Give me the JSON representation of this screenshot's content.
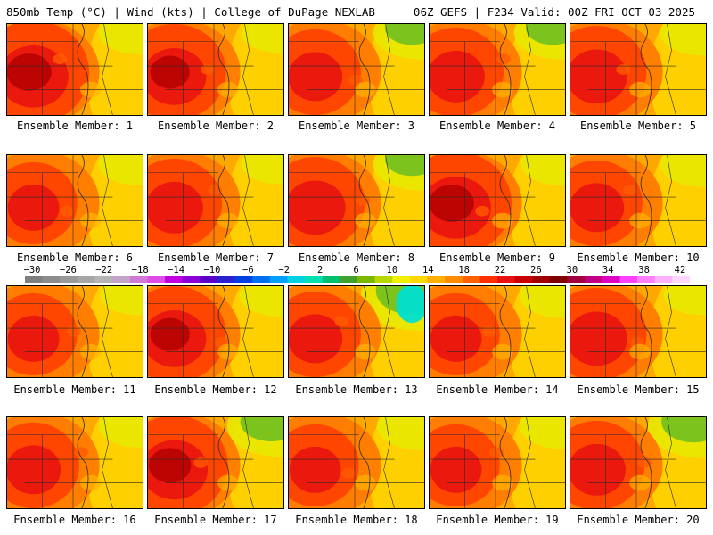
{
  "header": {
    "left": "850mb Temp (°C) | Wind (kts) | College of DuPage NEXLAB",
    "right": "06Z GEFS | F234 Valid: 00Z FRI OCT 03 2025"
  },
  "colorbar": {
    "ticks": [
      "−30",
      "−26",
      "−22",
      "−18",
      "−14",
      "−10",
      "−6",
      "−2",
      "2",
      "6",
      "10",
      "14",
      "18",
      "22",
      "26",
      "30",
      "34",
      "38",
      "42"
    ],
    "colors": [
      "#7f7f7f",
      "#8c8c8c",
      "#9a9a9a",
      "#a6a6a6",
      "#b4b4b4",
      "#c2a4c8",
      "#d07ad8",
      "#e04ce8",
      "#c000e0",
      "#8a00d8",
      "#5a00c8",
      "#2a20d0",
      "#0040e0",
      "#0070f0",
      "#00a0ff",
      "#00d0e0",
      "#00e0b0",
      "#00c070",
      "#40a030",
      "#7ab800",
      "#b8d800",
      "#f0f000",
      "#ffd800",
      "#ffb000",
      "#ff8c00",
      "#ff6000",
      "#ff3000",
      "#e81010",
      "#c80000",
      "#a00000",
      "#800000",
      "#a00040",
      "#c00080",
      "#e000c0",
      "#ff40ff",
      "#ff80ff",
      "#ffb0ff",
      "#ffd8ff"
    ]
  },
  "panels": [
    {
      "label": "Ensemble Member: 1",
      "hot": 0.85,
      "cool": 0.15
    },
    {
      "label": "Ensemble Member: 2",
      "hot": 0.75,
      "cool": 0.1
    },
    {
      "label": "Ensemble Member: 3",
      "hot": 0.6,
      "cool": 0.35
    },
    {
      "label": "Ensemble Member: 4",
      "hot": 0.65,
      "cool": 0.35
    },
    {
      "label": "Ensemble Member: 5",
      "hot": 0.7,
      "cool": 0.2
    },
    {
      "label": "Ensemble Member: 6",
      "hot": 0.55,
      "cool": 0.15
    },
    {
      "label": "Ensemble Member: 7",
      "hot": 0.65,
      "cool": 0.1
    },
    {
      "label": "Ensemble Member: 8",
      "hot": 0.7,
      "cool": 0.35
    },
    {
      "label": "Ensemble Member: 9",
      "hot": 0.85,
      "cool": 0.15
    },
    {
      "label": "Ensemble Member: 10",
      "hot": 0.6,
      "cool": 0.2
    },
    {
      "label": "Ensemble Member: 11",
      "hot": 0.55,
      "cool": 0.1
    },
    {
      "label": "Ensemble Member: 12",
      "hot": 0.75,
      "cool": 0.15
    },
    {
      "label": "Ensemble Member: 13",
      "hot": 0.6,
      "cool": 0.7
    },
    {
      "label": "Ensemble Member: 14",
      "hot": 0.55,
      "cool": 0.2
    },
    {
      "label": "Ensemble Member: 15",
      "hot": 0.7,
      "cool": 0.1
    },
    {
      "label": "Ensemble Member: 16",
      "hot": 0.6,
      "cool": 0.15
    },
    {
      "label": "Ensemble Member: 17",
      "hot": 0.8,
      "cool": 0.5
    },
    {
      "label": "Ensemble Member: 18",
      "hot": 0.55,
      "cool": 0.25
    },
    {
      "label": "Ensemble Member: 19",
      "hot": 0.55,
      "cool": 0.2
    },
    {
      "label": "Ensemble Member: 20",
      "hot": 0.65,
      "cool": 0.55
    }
  ]
}
